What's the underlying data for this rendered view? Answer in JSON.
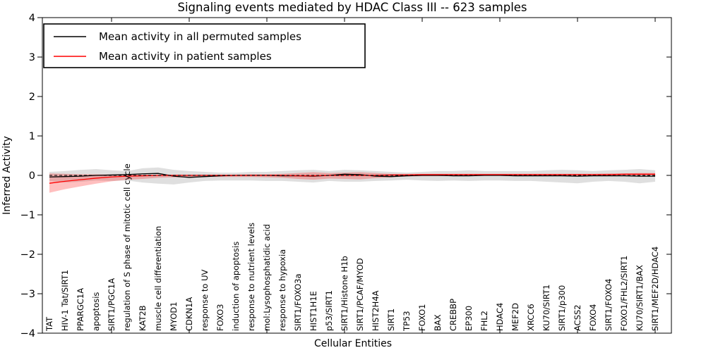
{
  "figure": {
    "background": "#ffffff",
    "frame_color": "#000000"
  },
  "chart_data": {
    "type": "line",
    "title": "Signaling events mediated by HDAC Class III -- 623 samples",
    "xlabel": "Cellular Entities",
    "ylabel": "Inferred Activity",
    "ylim": [
      -4,
      4
    ],
    "yticks": [
      4,
      3,
      2,
      1,
      0,
      -1,
      -2,
      -3,
      -4
    ],
    "ytick_labels": [
      "4",
      "3",
      "2",
      "1",
      "0",
      "−1",
      "−2",
      "−3",
      "−4"
    ],
    "grid": false,
    "legend_position": "upper-left",
    "zero_line": {
      "style": "dashed",
      "color": "#000000"
    },
    "categories": [
      "TAT",
      "HIV-1 Tat/SIRT1",
      "PPARGC1A",
      "apoptosis",
      "SIRT1/PGC1A",
      "regulation of S phase of mitotic cell cycle",
      "KAT2B",
      "muscle cell differentiation",
      "MYOD1",
      "CDKN1A",
      "response to UV",
      "FOXO3",
      "induction of apoptosis",
      "response to nutrient levels",
      "mol:Lysophosphatidic acid",
      "response to hypoxia",
      "SIRT1/FOXO3a",
      "HIST1H1E",
      "p53/SIRT1",
      "SIRT1/Histone H1b",
      "SIRT1/PCAF/MYOD",
      "HIST2H4A",
      "SIRT1",
      "TP53",
      "FOXO1",
      "BAX",
      "CREBBP",
      "EP300",
      "FHL2",
      "HDAC4",
      "MEF2D",
      "XRCC6",
      "KU70/SIRT1",
      "SIRT1/p300",
      "ACSS2",
      "FOXO4",
      "SIRT1/FOXO4",
      "FOXO1/FHL2/SIRT1",
      "KU70/SIRT1/BAX",
      "SIRT1/MEF2D/HDAC4"
    ],
    "series": [
      {
        "name": "Mean activity in all permuted samples",
        "color": "#000000",
        "values": [
          -0.04,
          -0.03,
          -0.02,
          0.0,
          0.01,
          0.02,
          0.04,
          0.05,
          -0.02,
          -0.05,
          -0.03,
          -0.01,
          0.0,
          0.0,
          0.0,
          -0.01,
          -0.01,
          -0.02,
          0.0,
          0.03,
          0.02,
          -0.02,
          -0.03,
          -0.01,
          0.0,
          0.0,
          -0.01,
          -0.01,
          0.0,
          0.0,
          -0.01,
          -0.01,
          -0.01,
          -0.01,
          -0.02,
          -0.01,
          -0.01,
          -0.01,
          -0.02,
          -0.02
        ]
      },
      {
        "name": "Mean activity in patient samples",
        "color": "#ff0000",
        "values": [
          -0.2,
          -0.15,
          -0.11,
          -0.07,
          -0.04,
          -0.02,
          -0.01,
          0.0,
          0.0,
          0.0,
          0.0,
          0.0,
          0.0,
          0.0,
          0.0,
          0.0,
          -0.01,
          -0.01,
          0.0,
          0.0,
          0.0,
          0.0,
          0.01,
          0.01,
          0.02,
          0.02,
          0.02,
          0.02,
          0.02,
          0.02,
          0.02,
          0.02,
          0.02,
          0.02,
          0.02,
          0.02,
          0.02,
          0.03,
          0.03,
          0.03
        ]
      }
    ],
    "bands": [
      {
        "name": "permuted-samples-range",
        "color": "#808080",
        "opacity": 0.25,
        "upper": [
          0.09,
          0.11,
          0.14,
          0.16,
          0.13,
          0.11,
          0.18,
          0.2,
          0.14,
          0.11,
          0.09,
          0.07,
          0.07,
          0.09,
          0.09,
          0.11,
          0.13,
          0.14,
          0.11,
          0.14,
          0.13,
          0.11,
          0.09,
          0.07,
          0.09,
          0.11,
          0.11,
          0.13,
          0.11,
          0.11,
          0.11,
          0.11,
          0.13,
          0.14,
          0.13,
          0.11,
          0.13,
          0.14,
          0.16,
          0.13
        ],
        "lower": [
          -0.14,
          -0.18,
          -0.16,
          -0.13,
          -0.14,
          -0.13,
          -0.18,
          -0.21,
          -0.23,
          -0.18,
          -0.14,
          -0.13,
          -0.13,
          -0.13,
          -0.14,
          -0.14,
          -0.16,
          -0.18,
          -0.14,
          -0.16,
          -0.16,
          -0.14,
          -0.13,
          -0.11,
          -0.13,
          -0.14,
          -0.13,
          -0.14,
          -0.13,
          -0.13,
          -0.14,
          -0.14,
          -0.16,
          -0.18,
          -0.2,
          -0.16,
          -0.14,
          -0.16,
          -0.2,
          -0.16
        ]
      },
      {
        "name": "patient-samples-range",
        "color": "#ff0000",
        "opacity": 0.25,
        "upper": [
          0.05,
          0.04,
          0.03,
          0.03,
          0.02,
          0.02,
          0.02,
          0.02,
          0.02,
          0.02,
          0.02,
          0.02,
          0.02,
          0.03,
          0.03,
          0.04,
          0.06,
          0.08,
          0.06,
          0.07,
          0.08,
          0.06,
          0.04,
          0.04,
          0.04,
          0.04,
          0.04,
          0.04,
          0.04,
          0.04,
          0.04,
          0.04,
          0.04,
          0.04,
          0.04,
          0.04,
          0.05,
          0.05,
          0.06,
          0.06
        ],
        "lower": [
          -0.44,
          -0.35,
          -0.28,
          -0.21,
          -0.15,
          -0.11,
          -0.09,
          -0.06,
          -0.05,
          -0.05,
          -0.04,
          -0.04,
          -0.04,
          -0.04,
          -0.05,
          -0.06,
          -0.09,
          -0.11,
          -0.08,
          -0.09,
          -0.1,
          -0.07,
          -0.05,
          -0.03,
          -0.02,
          -0.02,
          -0.01,
          -0.01,
          -0.01,
          -0.01,
          -0.01,
          -0.01,
          -0.01,
          -0.01,
          -0.01,
          -0.01,
          -0.01,
          0.0,
          0.0,
          0.0
        ]
      }
    ]
  }
}
